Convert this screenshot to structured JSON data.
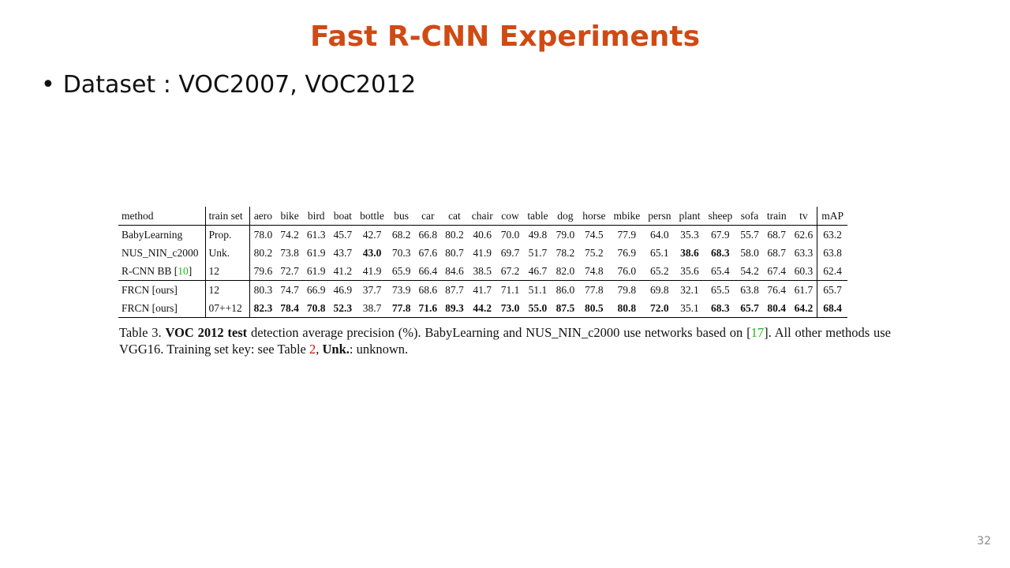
{
  "slide": {
    "title": "Fast R-CNN Experiments",
    "bullet_marker": "•",
    "bullet_text": "Dataset : VOC2007, VOC2012",
    "page_number": "32"
  },
  "table": {
    "headers": [
      "method",
      "train set",
      "aero",
      "bike",
      "bird",
      "boat",
      "bottle",
      "bus",
      "car",
      "cat",
      "chair",
      "cow",
      "table",
      "dog",
      "horse",
      "mbike",
      "persn",
      "plant",
      "sheep",
      "sofa",
      "train",
      "tv",
      "mAP"
    ],
    "rows": [
      {
        "method": "BabyLearning",
        "cite": "",
        "train_set": "Prop.",
        "values": [
          "78.0",
          "74.2",
          "61.3",
          "45.7",
          "42.7",
          "68.2",
          "66.8",
          "80.2",
          "40.6",
          "70.0",
          "49.8",
          "79.0",
          "74.5",
          "77.9",
          "64.0",
          "35.3",
          "67.9",
          "55.7",
          "68.7",
          "62.6",
          "63.2"
        ],
        "bold": []
      },
      {
        "method": "NUS_NIN_c2000",
        "cite": "",
        "train_set": "Unk.",
        "values": [
          "80.2",
          "73.8",
          "61.9",
          "43.7",
          "43.0",
          "70.3",
          "67.6",
          "80.7",
          "41.9",
          "69.7",
          "51.7",
          "78.2",
          "75.2",
          "76.9",
          "65.1",
          "38.6",
          "68.3",
          "58.0",
          "68.7",
          "63.3",
          "63.8"
        ],
        "bold": [
          4,
          15,
          16
        ]
      },
      {
        "method": "R-CNN BB [",
        "cite": "10",
        "train_set": "12",
        "values": [
          "79.6",
          "72.7",
          "61.9",
          "41.2",
          "41.9",
          "65.9",
          "66.4",
          "84.6",
          "38.5",
          "67.2",
          "46.7",
          "82.0",
          "74.8",
          "76.0",
          "65.2",
          "35.6",
          "65.4",
          "54.2",
          "67.4",
          "60.3",
          "62.4"
        ],
        "bold": []
      },
      {
        "method": "FRCN [ours]",
        "cite": "",
        "train_set": "12",
        "values": [
          "80.3",
          "74.7",
          "66.9",
          "46.9",
          "37.7",
          "73.9",
          "68.6",
          "87.7",
          "41.7",
          "71.1",
          "51.1",
          "86.0",
          "77.8",
          "79.8",
          "69.8",
          "32.1",
          "65.5",
          "63.8",
          "76.4",
          "61.7",
          "65.7"
        ],
        "bold": []
      },
      {
        "method": "FRCN [ours]",
        "cite": "",
        "train_set": "07++12",
        "values": [
          "82.3",
          "78.4",
          "70.8",
          "52.3",
          "38.7",
          "77.8",
          "71.6",
          "89.3",
          "44.2",
          "73.0",
          "55.0",
          "87.5",
          "80.5",
          "80.8",
          "72.0",
          "35.1",
          "68.3",
          "65.7",
          "80.4",
          "64.2",
          "68.4"
        ],
        "bold": [
          0,
          1,
          2,
          3,
          5,
          6,
          7,
          8,
          9,
          10,
          11,
          12,
          13,
          14,
          16,
          17,
          18,
          19,
          20
        ]
      }
    ]
  },
  "caption": {
    "p1": "Table 3. ",
    "b1": "VOC 2012 test",
    "p2": " detection average precision (%).  BabyLearning and NUS_NIN_c2000 use networks based on [",
    "cite1": "17",
    "p3": "].  All other methods use VGG16. Training set key: see Table ",
    "cite2": "2",
    "p4": ", ",
    "b2": "Unk.",
    "p5": ": unknown."
  },
  "colors": {
    "title": "#d04a14",
    "cite_green": "#1fb81f",
    "cite_red": "#e01010",
    "page_number": "#8a8a8a"
  }
}
